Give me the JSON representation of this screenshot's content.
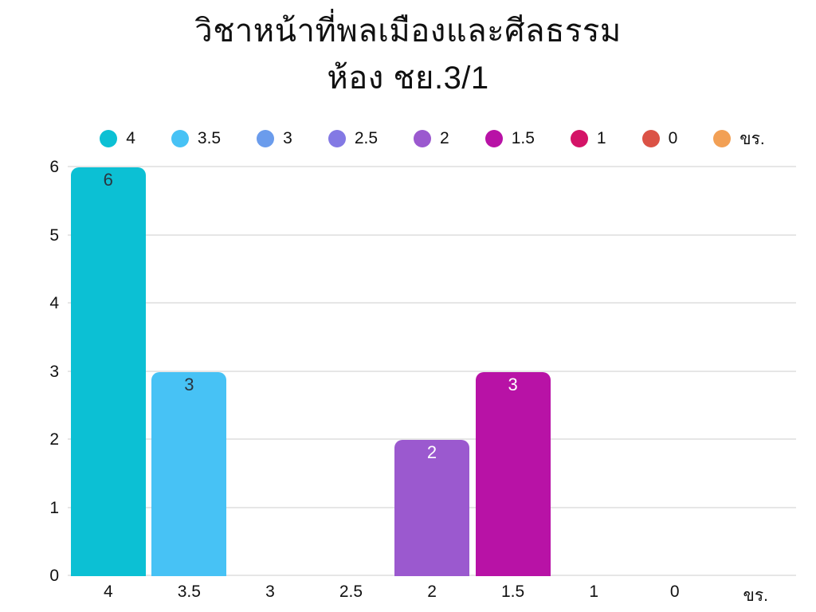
{
  "title": {
    "line1": "วิชาหน้าที่พลเมืองและศีลธรรม",
    "line2": "ห้อง ชย.3/1"
  },
  "chart_data": {
    "type": "bar",
    "title": "วิชาหน้าที่พลเมืองและศีลธรรม",
    "subtitle": "ห้อง ชย.3/1",
    "categories": [
      "4",
      "3.5",
      "3",
      "2.5",
      "2",
      "1.5",
      "1",
      "0",
      "ขร."
    ],
    "values": [
      6,
      3,
      0,
      0,
      2,
      3,
      0,
      0,
      0
    ],
    "bar_colors": [
      "#0cc0d4",
      "#47c2f5",
      "#6b9cec",
      "#8379e4",
      "#9b59cf",
      "#b812a6",
      "#d41367",
      "#db5246",
      "#f2a055"
    ],
    "value_label_colors": [
      "#2a3540",
      "#2a3540",
      "#ffffff",
      "#ffffff",
      "#ffffff",
      "#ffffff",
      "#ffffff",
      "#ffffff",
      "#ffffff"
    ],
    "xlabel": "",
    "ylabel": "",
    "ylim": [
      0,
      6
    ],
    "yticks": [
      0,
      1,
      2,
      3,
      4,
      5,
      6
    ],
    "grid": true,
    "gridline_color": "#e6e6e6",
    "legend_position": "top",
    "legend_items": [
      {
        "label": "4",
        "color": "#0cc0d4"
      },
      {
        "label": "3.5",
        "color": "#47c2f5"
      },
      {
        "label": "3",
        "color": "#6b9cec"
      },
      {
        "label": "2.5",
        "color": "#8379e4"
      },
      {
        "label": "2",
        "color": "#9b59cf"
      },
      {
        "label": "1.5",
        "color": "#b812a6"
      },
      {
        "label": "1",
        "color": "#d41367"
      },
      {
        "label": "0",
        "color": "#db5246"
      },
      {
        "label": "ขร.",
        "color": "#f2a055"
      }
    ],
    "axis_text_color": "#111111"
  }
}
